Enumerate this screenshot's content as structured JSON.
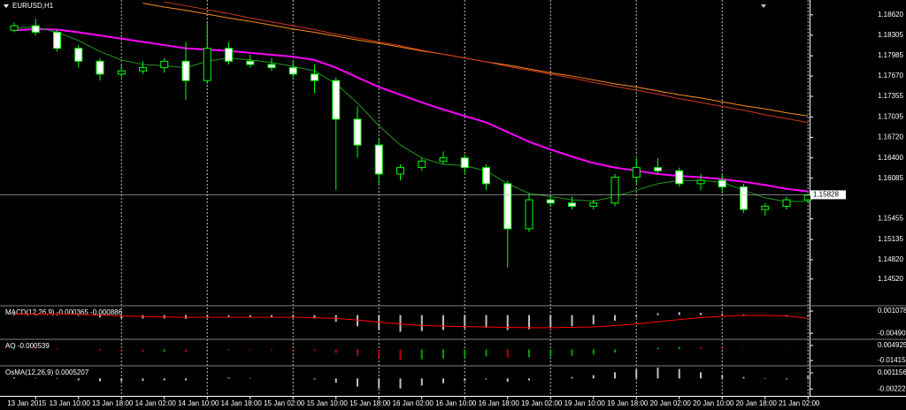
{
  "chart_data": [
    {
      "type": "candlestick",
      "title": "EURUSD,H1",
      "categories": [
        null,
        "13 Jan 2015",
        null,
        "13 Jan 10:00",
        null,
        "13 Jan 18:00",
        null,
        "14 Jan 02:00",
        null,
        "14 Jan 10:00",
        null,
        "14 Jan 18:00",
        null,
        "15 Jan 02:00",
        null,
        "15 Jan 10:00",
        null,
        "15 Jan 18:00",
        null,
        "16 Jan 02:00",
        null,
        "16 Jan 10:00",
        null,
        "16 Jan 18:00",
        null,
        "19 Jan 02:00",
        null,
        "19 Jan 10:00",
        null,
        "19 Jan 18:00",
        null,
        "20 Jan 02:00",
        null,
        "20 Jan 10:00",
        null,
        "20 Jan 18:00",
        null,
        "21 Jan 02:00"
      ],
      "open": [
        1.1838,
        1.1845,
        1.1835,
        1.181,
        1.179,
        1.177,
        1.1775,
        1.178,
        1.179,
        1.176,
        1.181,
        1.179,
        1.1785,
        1.178,
        1.177,
        1.176,
        1.17,
        1.166,
        1.1615,
        1.1625,
        1.1635,
        1.164,
        1.1625,
        1.16,
        1.153,
        1.1575,
        1.157,
        1.1565,
        1.157,
        1.161,
        1.1625,
        1.162,
        1.16,
        1.1605,
        1.1595,
        1.156,
        1.1565,
        1.1575
      ],
      "high": [
        1.185,
        1.1856,
        1.184,
        1.1815,
        1.1795,
        1.1785,
        1.179,
        1.1795,
        1.182,
        1.185,
        1.182,
        1.18,
        1.1795,
        1.179,
        1.1785,
        1.1765,
        1.172,
        1.167,
        1.163,
        1.164,
        1.165,
        1.1645,
        1.163,
        1.1605,
        1.1585,
        1.158,
        1.158,
        1.1575,
        1.1615,
        1.164,
        1.164,
        1.1625,
        1.1615,
        1.1615,
        1.16,
        1.157,
        1.158,
        1.1585
      ],
      "low": [
        1.1835,
        1.183,
        1.1805,
        1.178,
        1.176,
        1.1765,
        1.177,
        1.1772,
        1.173,
        1.1755,
        1.1785,
        1.178,
        1.1775,
        1.1765,
        1.174,
        1.159,
        1.164,
        1.16,
        1.1605,
        1.162,
        1.163,
        1.1615,
        1.159,
        1.147,
        1.1525,
        1.1565,
        1.156,
        1.156,
        1.1565,
        1.16,
        1.1615,
        1.1595,
        1.159,
        1.1585,
        1.1555,
        1.155,
        1.156,
        1.157
      ],
      "close": [
        1.1845,
        1.1835,
        1.181,
        1.179,
        1.177,
        1.1775,
        1.178,
        1.179,
        1.176,
        1.181,
        1.179,
        1.1785,
        1.178,
        1.177,
        1.176,
        1.17,
        1.166,
        1.1615,
        1.1625,
        1.1635,
        1.164,
        1.1625,
        1.16,
        1.153,
        1.1575,
        1.157,
        1.1565,
        1.157,
        1.161,
        1.1625,
        1.162,
        1.16,
        1.1605,
        1.1595,
        1.156,
        1.1565,
        1.1575,
        1.1582
      ],
      "up_color": "#000000",
      "down_color": "#ffffff",
      "wick_color": "#00ff00",
      "series": [
        {
          "color": "#ff8c1a",
          "values": [
            null,
            null,
            null,
            null,
            null,
            null,
            1.188,
            1.1874,
            1.1869,
            1.1863,
            1.1857,
            1.1852,
            1.1846,
            1.184,
            1.1835,
            1.1829,
            1.1823,
            1.1818,
            1.1812,
            1.1806,
            1.1801,
            1.1795,
            1.1789,
            1.1784,
            1.1778,
            1.1772,
            1.1767,
            1.1761,
            1.1755,
            1.175,
            1.1744,
            1.1738,
            1.1733,
            1.1727,
            1.1721,
            1.1716,
            1.171,
            1.1705
          ]
        },
        {
          "color": "#d2361e",
          "values": [
            null,
            null,
            null,
            null,
            null,
            null,
            null,
            1.1882,
            1.1876,
            1.187,
            1.1864,
            1.1857,
            1.1851,
            1.1845,
            1.1839,
            1.1832,
            1.1826,
            1.182,
            1.1814,
            1.1807,
            1.1801,
            1.1795,
            1.1789,
            1.1782,
            1.1776,
            1.177,
            1.1764,
            1.1757,
            1.1751,
            1.1745,
            1.1739,
            1.1732,
            1.1726,
            1.172,
            1.1714,
            1.1707,
            1.1701,
            1.1695
          ]
        },
        {
          "color": "#ff00ff",
          "values": [
            1.1838,
            1.184,
            1.1839,
            1.1835,
            1.183,
            1.1825,
            1.182,
            1.1815,
            1.181,
            1.1808,
            1.1806,
            1.1803,
            1.18,
            1.1797,
            1.1792,
            1.178,
            1.1765,
            1.175,
            1.1738,
            1.1726,
            1.1715,
            1.1705,
            1.1695,
            1.168,
            1.1665,
            1.1653,
            1.1642,
            1.1632,
            1.1625,
            1.162,
            1.1615,
            1.1612,
            1.161,
            1.1607,
            1.1603,
            1.1598,
            1.1592,
            1.1588
          ]
        },
        {
          "color": "#1f9a1f",
          "values": [
            1.1842,
            1.1843,
            1.1835,
            1.1822,
            1.1805,
            1.1792,
            1.1785,
            1.1783,
            1.178,
            1.179,
            1.1795,
            1.1792,
            1.1788,
            1.1782,
            1.1775,
            1.1755,
            1.1725,
            1.169,
            1.166,
            1.164,
            1.163,
            1.1628,
            1.162,
            1.16,
            1.1585,
            1.158,
            1.1575,
            1.1573,
            1.158,
            1.159,
            1.16,
            1.1605,
            1.1605,
            1.1602,
            1.159,
            1.1578,
            1.1572,
            1.1573
          ]
        }
      ],
      "ylim": [
        1.1412,
        1.1885
      ],
      "yticks": [
        {
          "value": 1.1862,
          "label": "1.18620"
        },
        {
          "value": 1.18305,
          "label": "1.18305"
        },
        {
          "value": 1.17985,
          "label": "1.17985"
        },
        {
          "value": 1.1767,
          "label": "1.17670"
        },
        {
          "value": 1.17355,
          "label": "1.17355"
        },
        {
          "value": 1.17035,
          "label": "1.17035"
        },
        {
          "value": 1.1672,
          "label": "1.16720"
        },
        {
          "value": 1.164,
          "label": "1.16400"
        },
        {
          "value": 1.16085,
          "label": "1.16085"
        },
        {
          "value": 1.15455,
          "label": "1.15455"
        },
        {
          "value": 1.15135,
          "label": "1.15135"
        },
        {
          "value": 1.1482,
          "label": "1.14820"
        },
        {
          "value": 1.1452,
          "label": "1.14520"
        }
      ],
      "last_price": {
        "value": 1.15828,
        "label": "1.15828"
      },
      "grid": true
    },
    {
      "type": "indicator",
      "title": "MACD(12,26,9) -0.000365 -0.000886",
      "series": [
        {
          "kind": "bar",
          "color": "#c0c0c0",
          "values": [
            0.0005,
            0.0004,
            0.0002,
            -0.0002,
            -0.0006,
            -0.0008,
            -0.0009,
            -0.0009,
            -0.001,
            -0.0005,
            -0.0004,
            -0.0005,
            -0.0006,
            -0.0007,
            -0.0009,
            -0.0018,
            -0.003,
            -0.004,
            -0.0045,
            -0.0043,
            -0.004,
            -0.0036,
            -0.0034,
            -0.004,
            -0.0038,
            -0.0034,
            -0.003,
            -0.0025,
            -0.0015,
            -0.0005,
            0.0005,
            0.0008,
            0.0006,
            0.0004,
            0.0002,
            -0.0002,
            -0.0004,
            -0.0004
          ]
        },
        {
          "kind": "line",
          "color": "#ff0000",
          "values": [
            0.0003,
            0.0003,
            0.0003,
            0.0002,
            0.0,
            -0.0002,
            -0.0004,
            -0.0005,
            -0.0006,
            -0.0006,
            -0.0006,
            -0.0006,
            -0.0006,
            -0.0006,
            -0.0007,
            -0.0009,
            -0.0013,
            -0.0019,
            -0.0024,
            -0.0028,
            -0.003,
            -0.0031,
            -0.0032,
            -0.0033,
            -0.0034,
            -0.0034,
            -0.0033,
            -0.0032,
            -0.0028,
            -0.0024,
            -0.0018,
            -0.0012,
            -0.0007,
            -0.0003,
            -0.0001,
            -0.0001,
            -0.0002,
            -0.0009
          ]
        }
      ],
      "ylim": [
        -0.0063,
        0.0023
      ],
      "yticks": [
        {
          "value": 0.001078,
          "label": "0.001078"
        },
        {
          "value": -0.004902,
          "label": "-0.004902"
        }
      ]
    },
    {
      "type": "indicator",
      "title": "AO -0.000539",
      "up_color": "#00a000",
      "down_color": "#c00000",
      "series": [
        {
          "kind": "bar",
          "values": [
            0.002,
            0.0018,
            0.0012,
            0.0,
            -0.0015,
            -0.0025,
            -0.003,
            -0.003,
            -0.0032,
            -0.002,
            -0.001,
            -0.0012,
            -0.0015,
            -0.0018,
            -0.0022,
            -0.0045,
            -0.008,
            -0.011,
            -0.013,
            -0.0125,
            -0.0115,
            -0.01,
            -0.009,
            -0.0105,
            -0.01,
            -0.009,
            -0.008,
            -0.0065,
            -0.004,
            -0.001,
            0.002,
            0.003,
            0.0025,
            0.0018,
            0.0008,
            -0.0002,
            -0.0005,
            -0.0005
          ]
        }
      ],
      "ylim": [
        -0.0197,
        0.0116
      ],
      "yticks": [
        {
          "value": 0.004925,
          "label": "0.004925"
        },
        {
          "value": -0.01415,
          "label": "-0.014150"
        }
      ]
    },
    {
      "type": "indicator",
      "title": "OsMA(12,26,9) 0.0005207",
      "series": [
        {
          "kind": "bar",
          "color": "#c0c0c0",
          "values": [
            0.0002,
            0.0001,
            -0.0001,
            -0.0004,
            -0.0006,
            -0.0006,
            -0.0005,
            -0.0004,
            -0.0004,
            0.0001,
            0.0002,
            0.0001,
            0,
            -0.0001,
            -0.0002,
            -0.0009,
            -0.0017,
            -0.0021,
            -0.0021,
            -0.0015,
            -0.001,
            -0.0005,
            -0.0002,
            -0.0007,
            -0.0004,
            0,
            0.0003,
            0.0007,
            0.0013,
            0.0019,
            0.0023,
            0.002,
            0.0013,
            0.0007,
            0.0003,
            -0.0001,
            -0.0002,
            0.0005
          ]
        }
      ],
      "ylim": [
        -0.00366,
        0.00247
      ],
      "yticks": [
        {
          "value": 0.001156,
          "label": "0.001156"
        },
        {
          "value": -0.002221,
          "label": "-0.002221"
        }
      ]
    }
  ]
}
